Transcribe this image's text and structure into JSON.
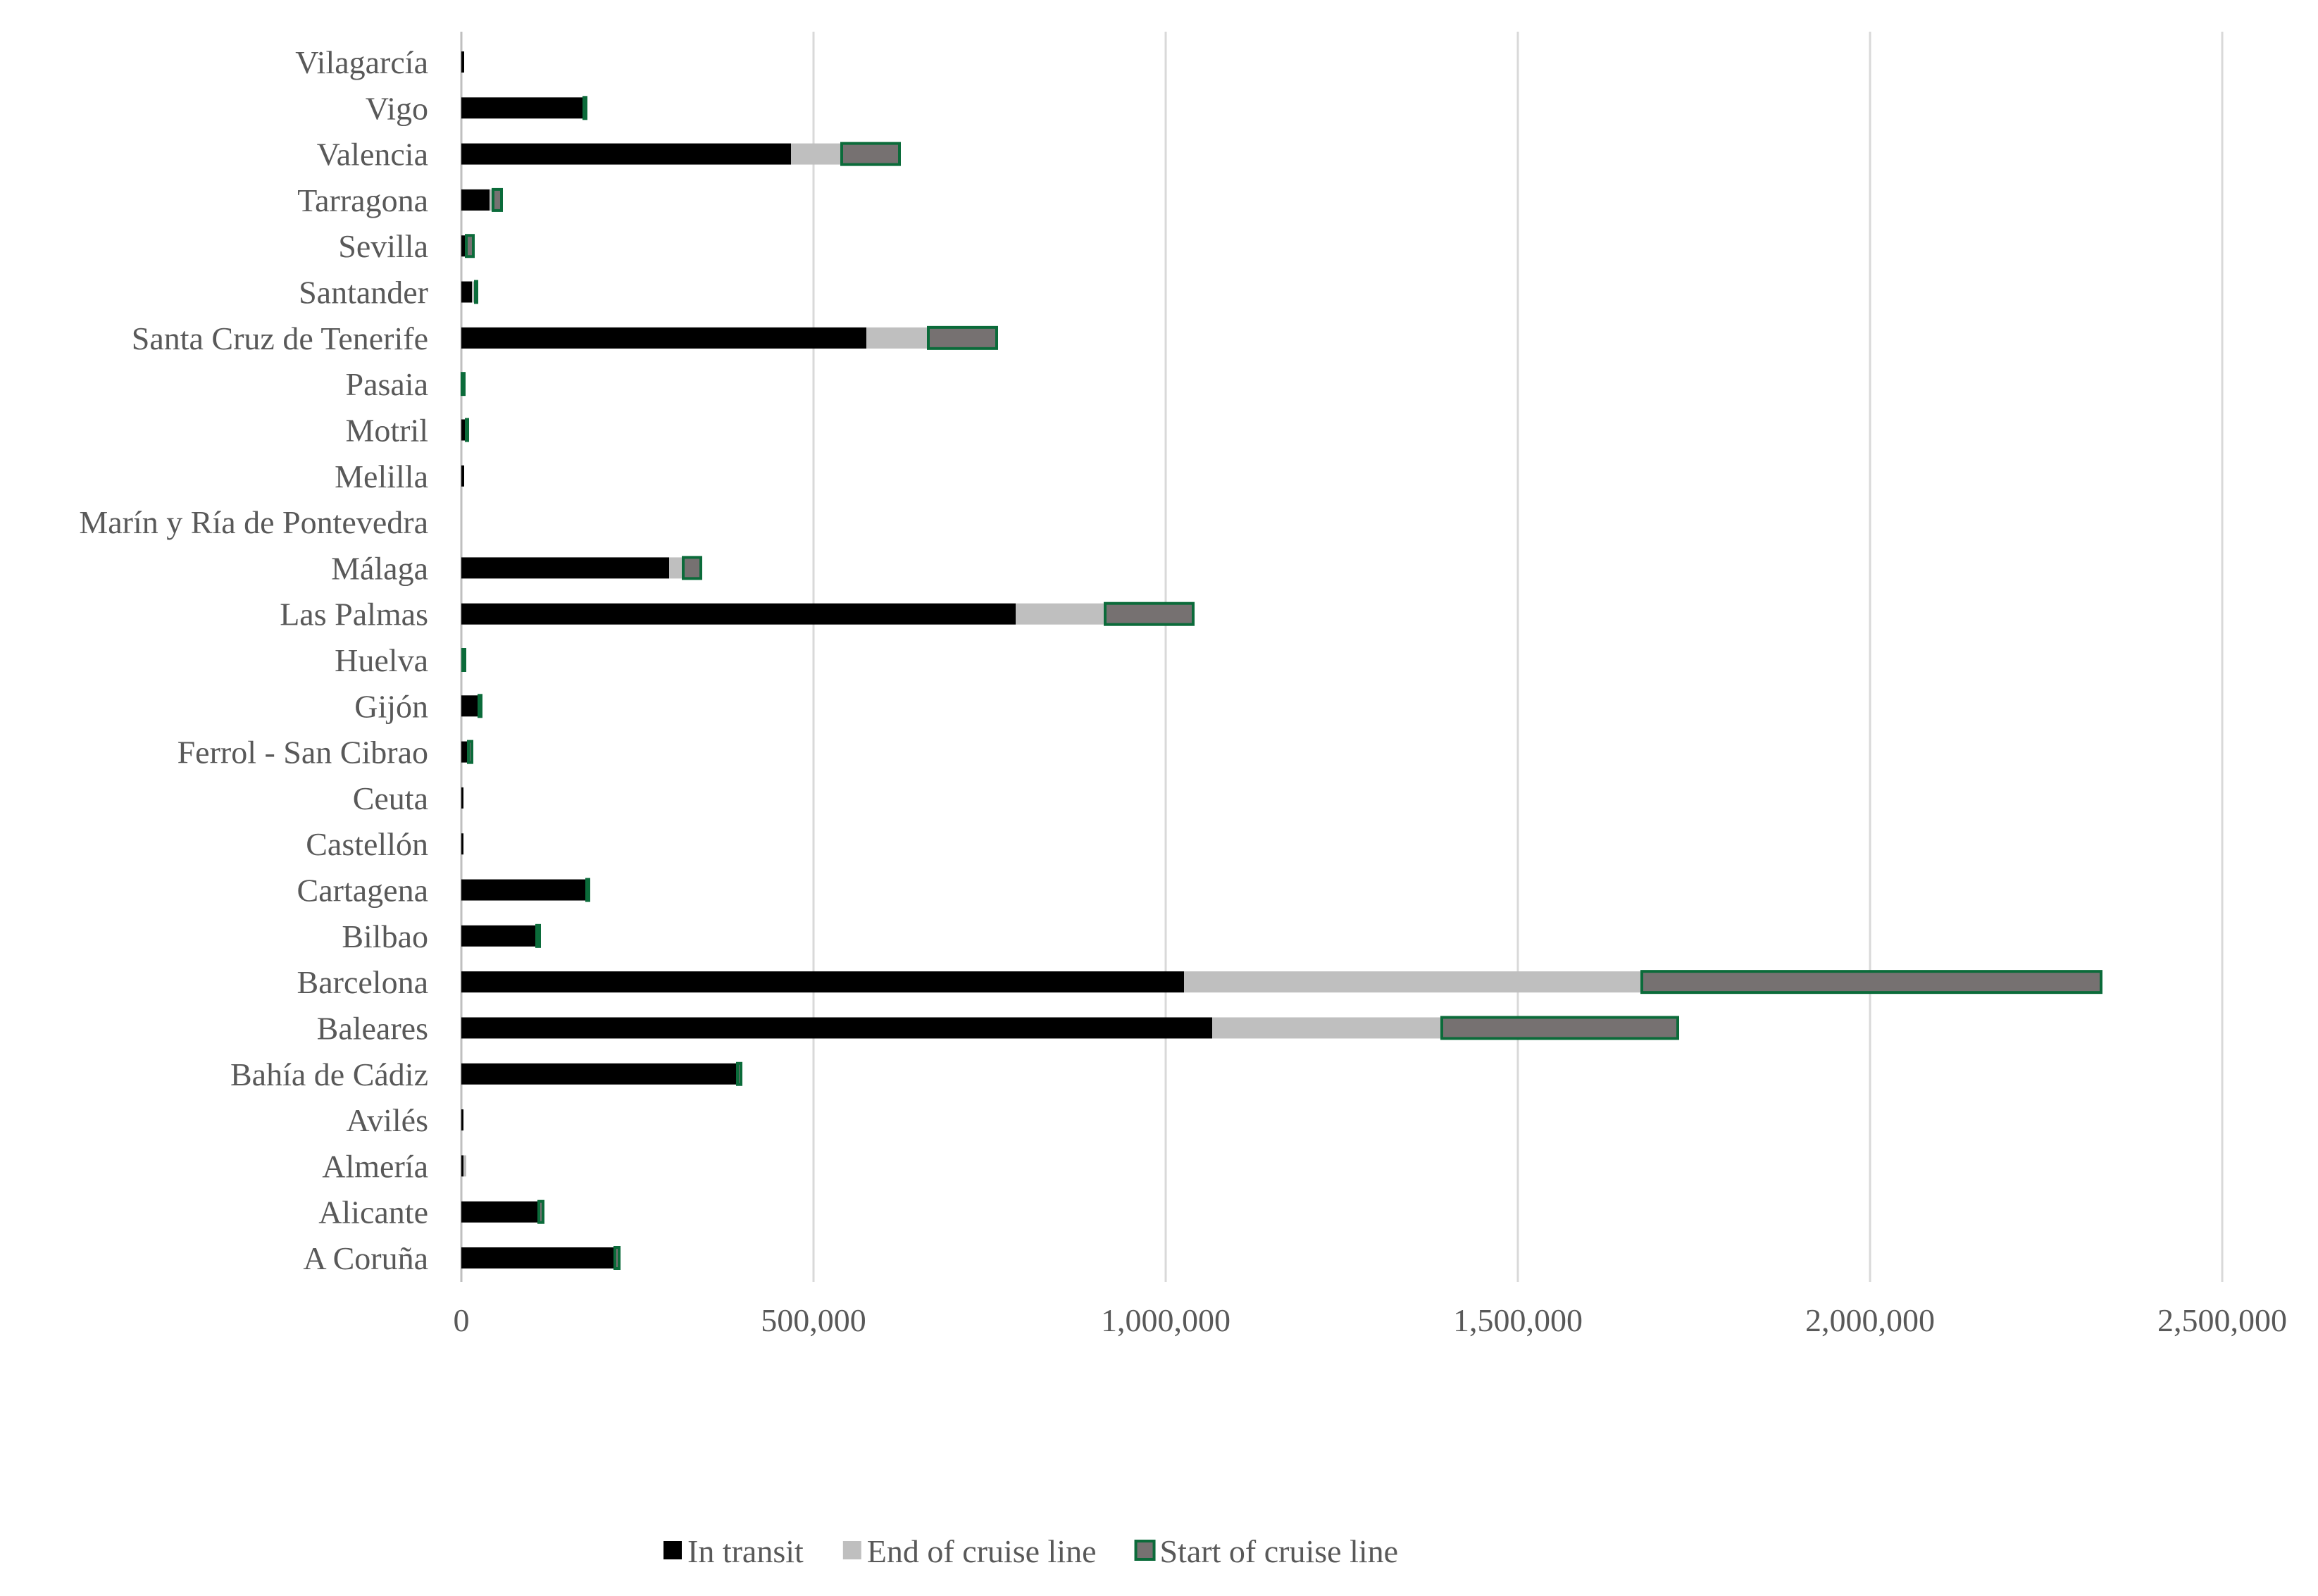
{
  "chart_data": {
    "type": "bar",
    "orientation": "horizontal",
    "stacked": true,
    "categories": [
      "Vilagarcía",
      "Vigo",
      "Valencia",
      "Tarragona",
      "Sevilla",
      "Santander",
      "Santa Cruz de Tenerife",
      "Pasaia",
      "Motril",
      "Melilla",
      "Marín y Ría de Pontevedra",
      "Málaga",
      "Las Palmas",
      "Huelva",
      "Gijón",
      "Ferrol - San Cibrao",
      "Ceuta",
      "Castellón",
      "Cartagena",
      "Bilbao",
      "Barcelona",
      "Baleares",
      "Bahía de Cádiz",
      "Avilés",
      "Almería",
      "Alicante",
      "A Coruña"
    ],
    "series": [
      {
        "name": "In transit",
        "color": "#000000",
        "values": [
          4000,
          172000,
          468000,
          40000,
          5000,
          15000,
          575000,
          1000,
          5000,
          4000,
          0,
          295000,
          787000,
          2000,
          25000,
          10000,
          3000,
          3000,
          176000,
          105000,
          1026000,
          1066000,
          390000,
          3000,
          3000,
          108000,
          216000
        ]
      },
      {
        "name": "End of cruise line",
        "color": "#bfbfbf",
        "values": [
          0,
          2000,
          72000,
          5000,
          2000,
          5000,
          88000,
          0,
          2000,
          0,
          0,
          20000,
          127000,
          0,
          0,
          0,
          0,
          0,
          2000,
          2000,
          650000,
          326000,
          2000,
          0,
          4000,
          2000,
          2000
        ]
      },
      {
        "name": "Start of cruise line",
        "color": "#767171",
        "border": "#0b6b3a",
        "values": [
          0,
          3000,
          82000,
          12000,
          10000,
          2000,
          97000,
          3000,
          2000,
          0,
          0,
          25000,
          125000,
          3000,
          3000,
          5000,
          0,
          0,
          3000,
          4000,
          652000,
          335000,
          5000,
          0,
          0,
          6000,
          6000
        ]
      }
    ],
    "xlim": [
      0,
      2500000
    ],
    "x_ticks": [
      0,
      500000,
      1000000,
      1500000,
      2000000,
      2500000
    ],
    "x_tick_labels": [
      "0",
      "500,000",
      "1,000,000",
      "1,500,000",
      "2,000,000",
      "2,500,000"
    ],
    "grid": true,
    "legend_position": "bottom"
  }
}
